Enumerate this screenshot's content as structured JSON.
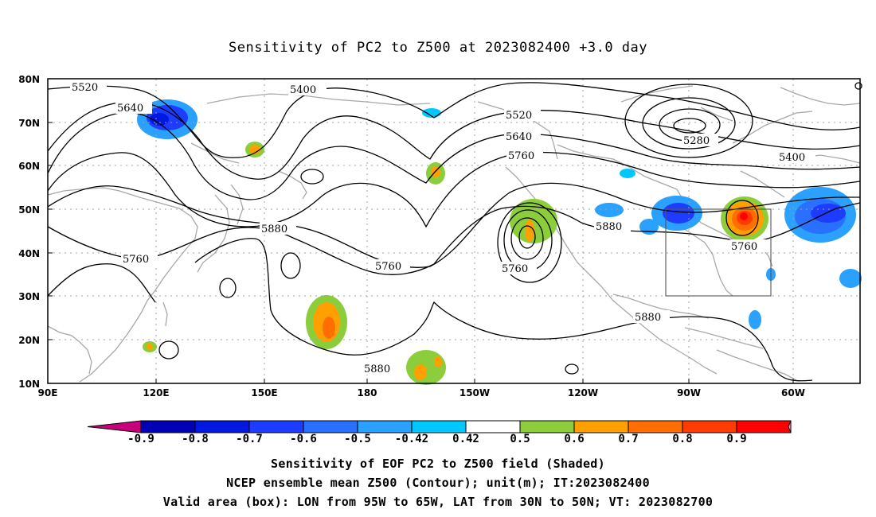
{
  "title": "Sensitivity of PC2 to Z500 at 2023082400 +3.0 day",
  "lat_ticks": [
    "80N",
    "70N",
    "60N",
    "50N",
    "40N",
    "30N",
    "20N",
    "10N"
  ],
  "lon_ticks": [
    "90E",
    "120E",
    "150E",
    "180",
    "150W",
    "120W",
    "90W",
    "60W"
  ],
  "contour_labels": [
    "5520",
    "5400",
    "5640",
    "5520",
    "5640",
    "5760",
    "5280",
    "5400",
    "5880",
    "5760",
    "5880",
    "5760",
    "5760",
    "5760",
    "5880",
    "5880"
  ],
  "colorbar": {
    "labels": [
      "-0.9",
      "-0.8",
      "-0.7",
      "-0.6",
      "-0.5",
      "-0.42",
      "0.42",
      "0.5",
      "0.6",
      "0.7",
      "0.8",
      "0.9"
    ],
    "colors": [
      "#c8007a",
      "#0000b4",
      "#0018e0",
      "#1e3cff",
      "#2a70ff",
      "#2aa0ff",
      "#00c8ff",
      "#ffffff",
      "#8ccd3c",
      "#ffa000",
      "#ff6e00",
      "#ff3c00",
      "#ff0000",
      "#ff9ad0"
    ]
  },
  "captions": {
    "line1": "Sensitivity of EOF PC2 to Z500 field (Shaded)",
    "line2": "NCEP ensemble mean Z500 (Contour); unit(m); IT:2023082400",
    "line3": "Valid area (box): LON from 95W to 65W, LAT from 30N to 50N; VT: 2023082700"
  }
}
